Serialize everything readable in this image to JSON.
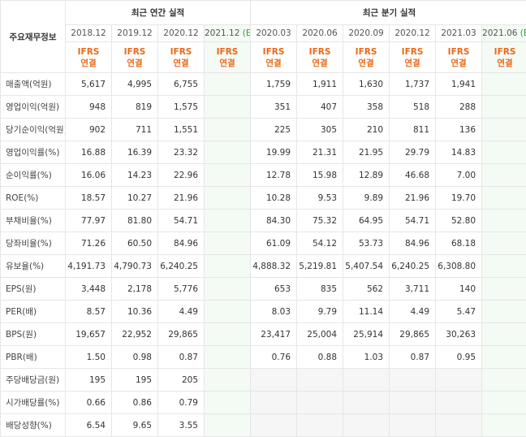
{
  "header": {
    "row_label": "주요재무정보",
    "annual_title": "최근 연간 실적",
    "quarterly_title": "최근 분기 실적"
  },
  "annual_count": 4,
  "periods": [
    {
      "date": "2018.12",
      "basis": "IFRS",
      "scope": "연결"
    },
    {
      "date": "2019.12",
      "basis": "IFRS",
      "scope": "연결"
    },
    {
      "date": "2020.12",
      "basis": "IFRS",
      "scope": "연결"
    },
    {
      "date": "2021.12",
      "estimate": "(E)",
      "basis": "IFRS",
      "scope": "연결"
    },
    {
      "date": "2020.03",
      "basis": "IFRS",
      "scope": "연결"
    },
    {
      "date": "2020.06",
      "basis": "IFRS",
      "scope": "연결"
    },
    {
      "date": "2020.09",
      "basis": "IFRS",
      "scope": "연결"
    },
    {
      "date": "2020.12",
      "basis": "IFRS",
      "scope": "연결"
    },
    {
      "date": "2021.03",
      "basis": "IFRS",
      "scope": "연결"
    },
    {
      "date": "2021.06",
      "estimate": "(E)",
      "basis": "IFRS",
      "scope": "연결"
    }
  ],
  "groups": [
    [
      {
        "label": "매출액(억원)",
        "values": [
          "5,617",
          "4,995",
          "6,755",
          null,
          "1,759",
          "1,911",
          "1,630",
          "1,737",
          "1,941",
          null
        ]
      },
      {
        "label": "영업이익(억원)",
        "values": [
          "948",
          "819",
          "1,575",
          null,
          "351",
          "407",
          "358",
          "518",
          "288",
          null
        ]
      },
      {
        "label": "당기순이익(억원)",
        "values": [
          "902",
          "711",
          "1,551",
          null,
          "225",
          "305",
          "210",
          "811",
          "136",
          null
        ]
      }
    ],
    [
      {
        "label": "영업이익률(%)",
        "values": [
          "16.88",
          "16.39",
          "23.32",
          null,
          "19.99",
          "21.31",
          "21.95",
          "29.79",
          "14.83",
          null
        ]
      },
      {
        "label": "순이익률(%)",
        "values": [
          "16.06",
          "14.23",
          "22.96",
          null,
          "12.78",
          "15.98",
          "12.89",
          "46.68",
          "7.00",
          null
        ]
      },
      {
        "label": "ROE(%)",
        "values": [
          "18.57",
          "10.27",
          "21.96",
          null,
          "10.28",
          "9.53",
          "9.89",
          "21.96",
          "19.70",
          null
        ]
      }
    ],
    [
      {
        "label": "부채비율(%)",
        "values": [
          "77.97",
          "81.80",
          "54.71",
          null,
          "84.30",
          "75.32",
          "64.95",
          "54.71",
          "52.80",
          null
        ]
      },
      {
        "label": "당좌비율(%)",
        "values": [
          "71.26",
          "60.50",
          "84.96",
          null,
          "61.09",
          "54.12",
          "53.73",
          "84.96",
          "68.18",
          null
        ]
      },
      {
        "label": "유보율(%)",
        "values": [
          "4,191.73",
          "4,790.73",
          "6,240.25",
          null,
          "4,888.32",
          "5,219.81",
          "5,407.54",
          "6,240.25",
          "6,308.80",
          null
        ]
      }
    ],
    [
      {
        "label": "EPS(원)",
        "values": [
          "3,448",
          "2,178",
          "5,776",
          null,
          "653",
          "835",
          "562",
          "3,711",
          "140",
          null
        ]
      },
      {
        "label": "PER(배)",
        "values": [
          "8.57",
          "10.36",
          "4.49",
          null,
          "8.03",
          "9.79",
          "11.14",
          "4.49",
          "5.47",
          null
        ]
      },
      {
        "label": "BPS(원)",
        "values": [
          "19,657",
          "22,952",
          "29,865",
          null,
          "23,417",
          "25,004",
          "25,914",
          "29,865",
          "30,263",
          null
        ]
      },
      {
        "label": "PBR(배)",
        "values": [
          "1.50",
          "0.98",
          "0.87",
          null,
          "0.76",
          "0.88",
          "1.03",
          "0.87",
          "0.95",
          null
        ]
      }
    ],
    [
      {
        "label": "주당배당금(원)",
        "values": [
          "195",
          "195",
          "205",
          null,
          null,
          null,
          null,
          null,
          null,
          null
        ]
      },
      {
        "label": "시가배당률(%)",
        "values": [
          "0.66",
          "0.86",
          "0.79",
          null,
          null,
          null,
          null,
          null,
          null,
          null
        ]
      },
      {
        "label": "배당성향(%)",
        "values": [
          "6.54",
          "9.65",
          "3.55",
          null,
          null,
          null,
          null,
          null,
          null,
          null
        ]
      }
    ]
  ]
}
